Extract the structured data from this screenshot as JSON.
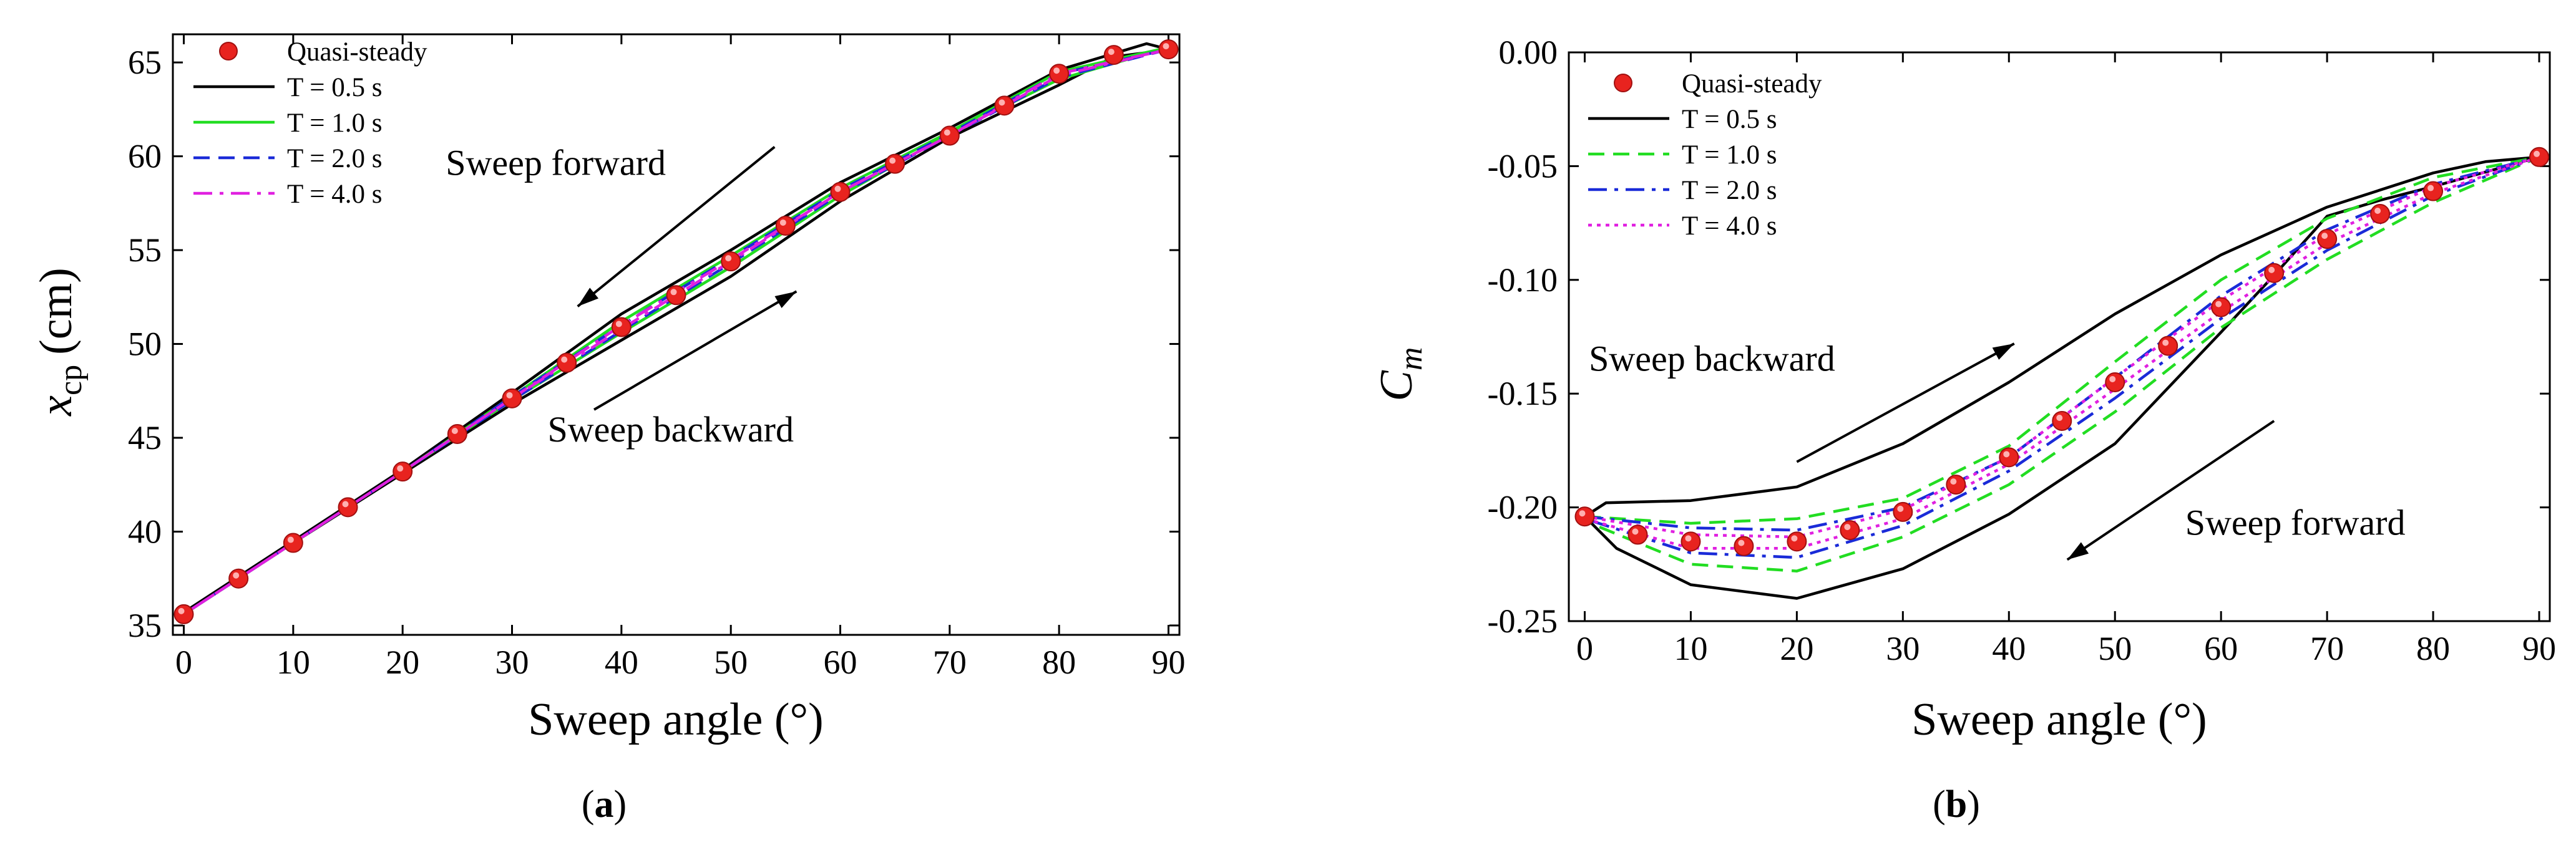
{
  "chart_data": [
    {
      "id": "a",
      "type": "line",
      "caption": "a",
      "xlabel": "Sweep angle (°)",
      "ylabel_main": "x",
      "ylabel_sub": "cp",
      "ylabel_unit": "(cm)",
      "xlim": [
        -1,
        91
      ],
      "ylim": [
        34.5,
        66.5
      ],
      "xticks": [
        0,
        10,
        20,
        30,
        40,
        50,
        60,
        70,
        80,
        90
      ],
      "yticks": [
        35,
        40,
        45,
        50,
        55,
        60,
        65
      ],
      "legend": [
        "Quasi-steady",
        "T = 0.5 s",
        "T = 1.0 s",
        "T = 2.0 s",
        "T = 4.0 s"
      ],
      "colors": {
        "quasi": "#e8231f",
        "t05": "#000000",
        "t10": "#22dd22",
        "t20": "#1a2bd8",
        "t40": "#e020e0"
      },
      "quasi_steady": {
        "x": [
          0,
          5,
          10,
          15,
          20,
          25,
          30,
          35,
          40,
          45,
          50,
          55,
          60,
          65,
          70,
          75,
          80,
          85,
          90
        ],
        "y": [
          35.6,
          37.5,
          39.4,
          41.3,
          43.2,
          45.2,
          47.1,
          49.0,
          50.9,
          52.6,
          54.4,
          56.3,
          58.1,
          59.6,
          61.1,
          62.7,
          64.4,
          65.4,
          65.7
        ]
      },
      "series": [
        {
          "name": "T = 0.5 s",
          "style": "solid",
          "backward": {
            "x": [
              0,
              10,
              20,
              30,
              40,
              50,
              60,
              70,
              80,
              85,
              89,
              90
            ],
            "y": [
              35.6,
              39.4,
              43.1,
              46.8,
              50.2,
              53.6,
              57.6,
              61.0,
              63.8,
              65.3,
              65.6,
              65.7
            ]
          },
          "forward": {
            "x": [
              90,
              88,
              80,
              70,
              60,
              50,
              40,
              30,
              20,
              10,
              0
            ],
            "y": [
              65.7,
              66.0,
              64.6,
              61.5,
              58.6,
              55.0,
              51.6,
              47.4,
              43.3,
              39.5,
              35.7
            ]
          }
        },
        {
          "name": "T = 1.0 s",
          "style": "solid",
          "backward": {
            "x": [
              0,
              10,
              20,
              30,
              40,
              50,
              60,
              70,
              80,
              90
            ],
            "y": [
              35.6,
              39.4,
              43.2,
              47.0,
              50.6,
              54.1,
              57.9,
              61.2,
              64.1,
              65.8
            ]
          },
          "forward": {
            "x": [
              90,
              80,
              70,
              60,
              50,
              40,
              30,
              20,
              10,
              0
            ],
            "y": [
              65.8,
              64.5,
              61.3,
              58.3,
              54.7,
              51.2,
              47.2,
              43.2,
              39.4,
              35.6
            ]
          }
        },
        {
          "name": "T = 2.0 s",
          "style": "dashed",
          "backward": {
            "x": [
              0,
              10,
              20,
              30,
              40,
              50,
              60,
              70,
              80,
              90
            ],
            "y": [
              35.6,
              39.4,
              43.2,
              47.0,
              50.7,
              54.3,
              58.0,
              61.1,
              64.2,
              65.7
            ]
          },
          "forward": {
            "x": [
              90,
              80,
              70,
              60,
              50,
              40,
              30,
              20,
              10,
              0
            ],
            "y": [
              65.7,
              64.4,
              61.2,
              58.2,
              54.6,
              51.0,
              47.2,
              43.2,
              39.4,
              35.6
            ]
          }
        },
        {
          "name": "T = 4.0 s",
          "style": "dashdot",
          "backward": {
            "x": [
              0,
              10,
              20,
              30,
              40,
              50,
              60,
              70,
              80,
              90
            ],
            "y": [
              35.6,
              39.4,
              43.2,
              47.1,
              50.8,
              54.4,
              58.1,
              61.1,
              64.3,
              65.7
            ]
          },
          "forward": {
            "x": [
              90,
              80,
              70,
              60,
              50,
              40,
              30,
              20,
              10,
              0
            ],
            "y": [
              65.7,
              64.4,
              61.1,
              58.1,
              54.5,
              51.0,
              47.1,
              43.2,
              39.4,
              35.6
            ]
          }
        }
      ],
      "annotations": [
        {
          "text": "Sweep forward",
          "tx": 34,
          "ty": 59.0,
          "ax1": 54,
          "ay1": 60.5,
          "ax2": 36,
          "ay2": 52.0
        },
        {
          "text": "Sweep backward",
          "tx": 44.5,
          "ty": 44.8,
          "ax1": 37.5,
          "ay1": 46.5,
          "ax2": 56,
          "ay2": 52.8
        }
      ]
    },
    {
      "id": "b",
      "type": "line",
      "caption": "b",
      "xlabel": "Sweep angle (°)",
      "ylabel_main": "C",
      "ylabel_sub": "m",
      "ylabel_unit": "",
      "xlim": [
        -1.5,
        91
      ],
      "ylim": [
        -0.25,
        0.0
      ],
      "yticklabels": [
        "0.00",
        "-0.05",
        "-0.10",
        "-0.15",
        "-0.20",
        "-0.25"
      ],
      "xticks": [
        0,
        10,
        20,
        30,
        40,
        50,
        60,
        70,
        80,
        90
      ],
      "yticks": [
        0.0,
        -0.05,
        -0.1,
        -0.15,
        -0.2,
        -0.25
      ],
      "legend": [
        "Quasi-steady",
        "T = 0.5 s",
        "T = 1.0 s",
        "T = 2.0 s",
        "T = 4.0 s"
      ],
      "colors": {
        "quasi": "#e8231f",
        "t05": "#000000",
        "t10": "#22dd22",
        "t20": "#1a2bd8",
        "t40": "#e020e0"
      },
      "quasi_steady": {
        "x": [
          0,
          5,
          10,
          15,
          20,
          25,
          30,
          35,
          40,
          45,
          50,
          55,
          60,
          65,
          70,
          75,
          80,
          90
        ],
        "y": [
          -0.204,
          -0.212,
          -0.215,
          -0.217,
          -0.215,
          -0.21,
          -0.202,
          -0.19,
          -0.178,
          -0.162,
          -0.145,
          -0.129,
          -0.112,
          -0.097,
          -0.082,
          -0.071,
          -0.061,
          -0.046
        ]
      },
      "series": [
        {
          "name": "T = 0.5 s",
          "style": "solid",
          "backward": {
            "x": [
              0,
              2,
              10,
              20,
              30,
              40,
              50,
              60,
              70,
              80,
              85,
              90
            ],
            "y": [
              -0.204,
              -0.198,
              -0.197,
              -0.191,
              -0.172,
              -0.145,
              -0.115,
              -0.089,
              -0.068,
              -0.053,
              -0.048,
              -0.046
            ]
          },
          "forward": {
            "x": [
              90,
              80,
              75,
              70,
              65,
              60,
              50,
              40,
              30,
              20,
              10,
              3,
              0
            ],
            "y": [
              -0.046,
              -0.059,
              -0.065,
              -0.072,
              -0.098,
              -0.123,
              -0.172,
              -0.203,
              -0.227,
              -0.24,
              -0.234,
              -0.218,
              -0.204
            ]
          }
        },
        {
          "name": "T = 1.0 s",
          "style": "dashed",
          "backward": {
            "x": [
              0,
              10,
              20,
              30,
              40,
              50,
              60,
              70,
              80,
              90
            ],
            "y": [
              -0.204,
              -0.207,
              -0.205,
              -0.196,
              -0.173,
              -0.136,
              -0.1,
              -0.073,
              -0.055,
              -0.046
            ]
          },
          "forward": {
            "x": [
              90,
              80,
              70,
              60,
              50,
              40,
              30,
              20,
              10,
              0
            ],
            "y": [
              -0.046,
              -0.066,
              -0.091,
              -0.121,
              -0.158,
              -0.19,
              -0.213,
              -0.228,
              -0.225,
              -0.206
            ]
          }
        },
        {
          "name": "T = 2.0 s",
          "style": "dashdot",
          "backward": {
            "x": [
              0,
              10,
              20,
              30,
              40,
              50,
              60,
              70,
              80,
              90
            ],
            "y": [
              -0.204,
              -0.209,
              -0.21,
              -0.2,
              -0.178,
              -0.143,
              -0.107,
              -0.078,
              -0.058,
              -0.046
            ]
          },
          "forward": {
            "x": [
              90,
              80,
              70,
              60,
              50,
              40,
              30,
              20,
              10,
              0
            ],
            "y": [
              -0.046,
              -0.063,
              -0.087,
              -0.117,
              -0.152,
              -0.184,
              -0.208,
              -0.222,
              -0.22,
              -0.205
            ]
          }
        },
        {
          "name": "T = 4.0 s",
          "style": "dotted",
          "backward": {
            "x": [
              0,
              10,
              20,
              30,
              40,
              50,
              60,
              70,
              80,
              90
            ],
            "y": [
              -0.204,
              -0.212,
              -0.213,
              -0.201,
              -0.178,
              -0.143,
              -0.109,
              -0.08,
              -0.059,
              -0.046
            ]
          },
          "forward": {
            "x": [
              90,
              80,
              70,
              60,
              50,
              40,
              30,
              20,
              10,
              0
            ],
            "y": [
              -0.046,
              -0.062,
              -0.084,
              -0.114,
              -0.148,
              -0.181,
              -0.205,
              -0.218,
              -0.218,
              -0.205
            ]
          }
        }
      ],
      "annotations": [
        {
          "text": "Sweep backward",
          "tx": 12,
          "ty": -0.14,
          "ax1": 20,
          "ay1": -0.18,
          "ax2": 40.5,
          "ay2": -0.128
        },
        {
          "text": "Sweep forward",
          "tx": 67,
          "ty": -0.212,
          "ax1": 65,
          "ay1": -0.162,
          "ax2": 45.5,
          "ay2": -0.223
        }
      ]
    }
  ]
}
